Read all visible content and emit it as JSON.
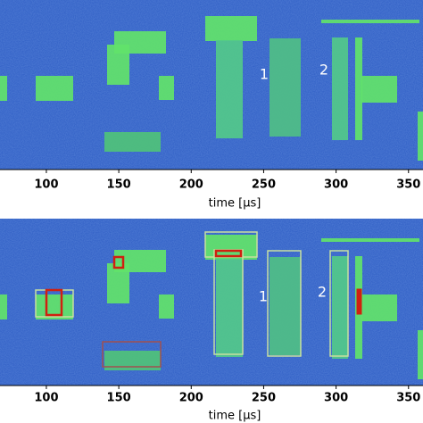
{
  "chart_data": [
    {
      "type": "spectrogram",
      "xlabel": "time [μs]",
      "xlim": [
        68,
        360
      ],
      "xticks": [
        100,
        150,
        200,
        250,
        300,
        350
      ],
      "annotations": [
        "1",
        "2"
      ]
    },
    {
      "type": "spectrogram",
      "xlabel": "time [μs]",
      "xlim": [
        68,
        360
      ],
      "xticks": [
        100,
        150,
        200,
        250,
        300,
        350
      ],
      "annotations": [
        "1",
        "2"
      ]
    }
  ]
}
